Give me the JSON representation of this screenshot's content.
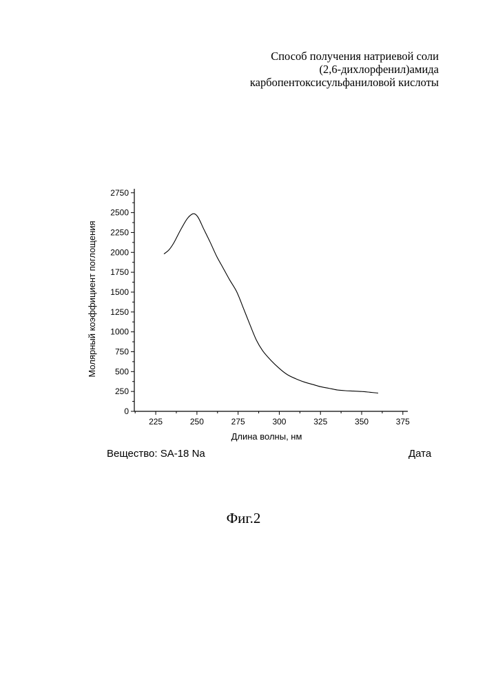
{
  "document": {
    "title_lines": [
      "Способ получения натриевой соли",
      "(2,6-дихлорфенил)амида",
      "карбопентоксисульфаниловой кислоты"
    ],
    "substance_label": "Вещество: SA-18 Na",
    "date_label": "Дата",
    "figure_caption": "Фиг.2"
  },
  "chart_data": {
    "type": "line",
    "title": "",
    "xlabel": "Длина волны, нм",
    "ylabel": "Молярный коэффициент поглощения",
    "xlim": [
      212,
      378
    ],
    "ylim": [
      0,
      2800
    ],
    "xticks": [
      225,
      250,
      275,
      300,
      325,
      350,
      375
    ],
    "yticks": [
      0,
      250,
      500,
      750,
      1000,
      1250,
      1500,
      1750,
      2000,
      2250,
      2500,
      2750
    ],
    "grid": false,
    "legend": "none",
    "series": [
      {
        "color": "#000000",
        "x": [
          230,
          233,
          236,
          240,
          244,
          247,
          249,
          251,
          254,
          258,
          262,
          266,
          270,
          274,
          278,
          282,
          286,
          290,
          295,
          300,
          305,
          310,
          315,
          320,
          325,
          330,
          335,
          340,
          345,
          350,
          355,
          360
        ],
        "y": [
          1980,
          2030,
          2120,
          2280,
          2420,
          2480,
          2480,
          2430,
          2300,
          2130,
          1950,
          1800,
          1650,
          1510,
          1310,
          1100,
          900,
          760,
          640,
          540,
          460,
          410,
          370,
          340,
          310,
          290,
          270,
          260,
          255,
          250,
          240,
          230
        ]
      }
    ]
  }
}
